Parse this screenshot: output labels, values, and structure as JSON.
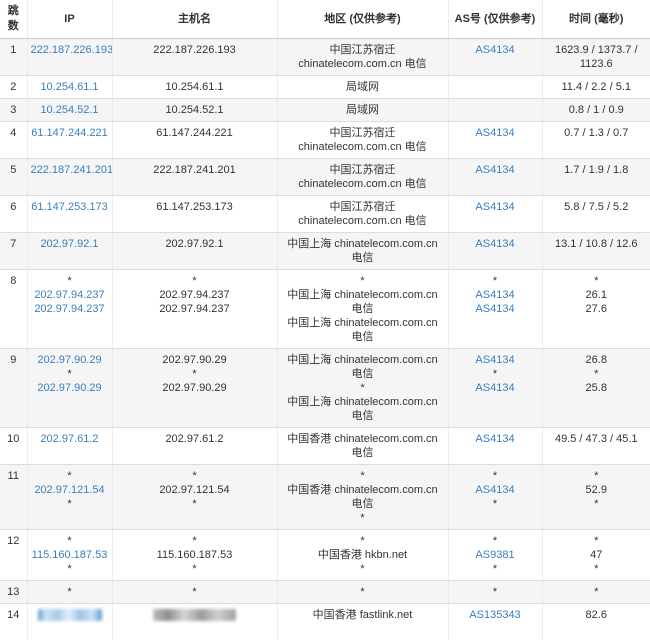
{
  "colors": {
    "link": "#3a7ebf",
    "stripe": "#f5f5f5",
    "border": "#dddddd",
    "text": "#333333"
  },
  "table": {
    "columns": [
      {
        "key": "hop",
        "label": "跳数"
      },
      {
        "key": "ip",
        "label": "IP"
      },
      {
        "key": "host",
        "label": "主机名"
      },
      {
        "key": "region",
        "label": "地区 (仅供参考)"
      },
      {
        "key": "asn",
        "label": "AS号 (仅供参考)"
      },
      {
        "key": "time",
        "label": "时间 (毫秒)"
      }
    ],
    "rows": [
      {
        "hop": "1",
        "cells": {
          "ip": [
            "222.187.226.193"
          ],
          "host": [
            "222.187.226.193"
          ],
          "region": [
            "中国江苏宿迁 chinatelecom.com.cn 电信"
          ],
          "asn": [
            "AS4134"
          ],
          "time": [
            "1623.9 / 1373.7 / 1123.6"
          ]
        }
      },
      {
        "hop": "2",
        "cells": {
          "ip": [
            "10.254.61.1"
          ],
          "host": [
            "10.254.61.1"
          ],
          "region": [
            "局域网"
          ],
          "asn": [],
          "time": [
            "11.4 / 2.2 / 5.1"
          ]
        }
      },
      {
        "hop": "3",
        "cells": {
          "ip": [
            "10.254.52.1"
          ],
          "host": [
            "10.254.52.1"
          ],
          "region": [
            "局域网"
          ],
          "asn": [],
          "time": [
            "0.8 / 1 / 0.9"
          ]
        }
      },
      {
        "hop": "4",
        "cells": {
          "ip": [
            "61.147.244.221"
          ],
          "host": [
            "61.147.244.221"
          ],
          "region": [
            "中国江苏宿迁 chinatelecom.com.cn 电信"
          ],
          "asn": [
            "AS4134"
          ],
          "time": [
            "0.7 / 1.3 / 0.7"
          ]
        }
      },
      {
        "hop": "5",
        "cells": {
          "ip": [
            "222.187.241.201"
          ],
          "host": [
            "222.187.241.201"
          ],
          "region": [
            "中国江苏宿迁 chinatelecom.com.cn 电信"
          ],
          "asn": [
            "AS4134"
          ],
          "time": [
            "1.7 / 1.9 / 1.8"
          ]
        }
      },
      {
        "hop": "6",
        "cells": {
          "ip": [
            "61.147.253.173"
          ],
          "host": [
            "61.147.253.173"
          ],
          "region": [
            "中国江苏宿迁 chinatelecom.com.cn 电信"
          ],
          "asn": [
            "AS4134"
          ],
          "time": [
            "5.8 / 7.5 / 5.2"
          ]
        }
      },
      {
        "hop": "7",
        "cells": {
          "ip": [
            "202.97.92.1"
          ],
          "host": [
            "202.97.92.1"
          ],
          "region": [
            "中国上海 chinatelecom.com.cn 电信"
          ],
          "asn": [
            "AS4134"
          ],
          "time": [
            "13.1 / 10.8 / 12.6"
          ]
        }
      },
      {
        "hop": "8",
        "cells": {
          "ip": [
            "*",
            "202.97.94.237",
            "202.97.94.237"
          ],
          "host": [
            "*",
            "202.97.94.237",
            "202.97.94.237"
          ],
          "region": [
            "*",
            "中国上海 chinatelecom.com.cn 电信",
            "中国上海 chinatelecom.com.cn 电信"
          ],
          "asn": [
            "*",
            "AS4134",
            "AS4134"
          ],
          "time": [
            "*",
            "26.1",
            "27.6"
          ]
        }
      },
      {
        "hop": "9",
        "cells": {
          "ip": [
            "202.97.90.29",
            "*",
            "202.97.90.29"
          ],
          "host": [
            "202.97.90.29",
            "*",
            "202.97.90.29"
          ],
          "region": [
            "中国上海 chinatelecom.com.cn 电信",
            "*",
            "中国上海 chinatelecom.com.cn 电信"
          ],
          "asn": [
            "AS4134",
            "*",
            "AS4134"
          ],
          "time": [
            "26.8",
            "*",
            "25.8"
          ]
        }
      },
      {
        "hop": "10",
        "cells": {
          "ip": [
            "202.97.61.2"
          ],
          "host": [
            "202.97.61.2"
          ],
          "region": [
            "中国香港 chinatelecom.com.cn 电信"
          ],
          "asn": [
            "AS4134"
          ],
          "time": [
            "49.5 / 47.3 / 45.1"
          ]
        }
      },
      {
        "hop": "11",
        "cells": {
          "ip": [
            "*",
            "202.97.121.54",
            "*"
          ],
          "host": [
            "*",
            "202.97.121.54",
            "*"
          ],
          "region": [
            "*",
            "中国香港 chinatelecom.com.cn 电信",
            "*"
          ],
          "asn": [
            "*",
            "AS4134",
            "*"
          ],
          "time": [
            "*",
            "52.9",
            "*"
          ]
        }
      },
      {
        "hop": "12",
        "cells": {
          "ip": [
            "*",
            "115.160.187.53",
            "*"
          ],
          "host": [
            "*",
            "115.160.187.53",
            "*"
          ],
          "region": [
            "*",
            "中国香港 hkbn.net",
            "*"
          ],
          "asn": [
            "*",
            "AS9381",
            "*"
          ],
          "time": [
            "*",
            "47",
            "*"
          ]
        }
      },
      {
        "hop": "13",
        "cells": {
          "ip": [
            "*"
          ],
          "host": [
            "*"
          ],
          "region": [
            "*"
          ],
          "asn": [
            "*"
          ],
          "time": [
            "*"
          ]
        }
      },
      {
        "hop": "14",
        "cells": {
          "ip": [
            {
              "redacted": "blue"
            }
          ],
          "host": [
            {
              "redacted": "gray"
            }
          ],
          "region": [
            "中国香港 fastlink.net"
          ],
          "asn": [
            "AS135343"
          ],
          "time": [
            "82.6"
          ]
        }
      }
    ]
  }
}
